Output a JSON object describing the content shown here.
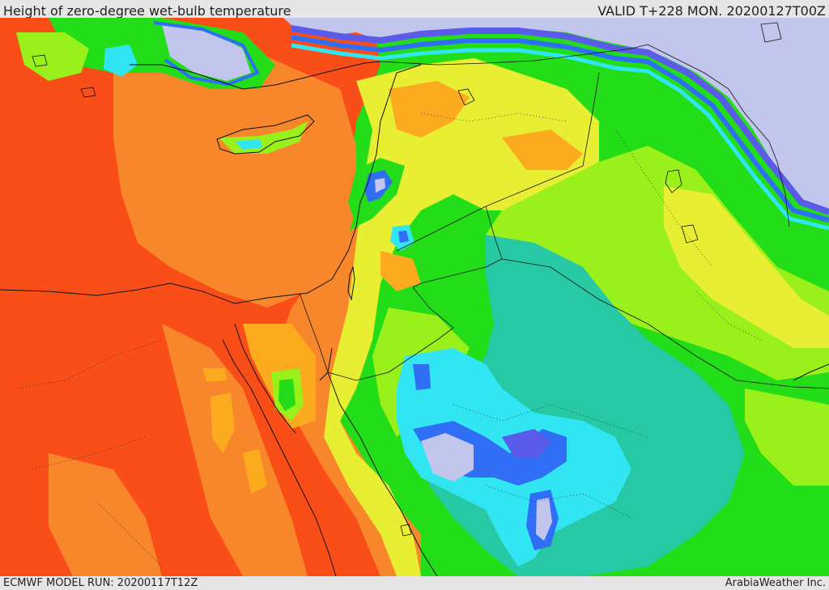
{
  "header": {
    "title": "Height of zero-degree wet-bulb temperature",
    "valid": "VALID T+228 MON. 20200127T00Z"
  },
  "footer": {
    "model_run": "ECMWF MODEL RUN: 20200117T12Z",
    "credit": "ArabiaWeather Inc."
  },
  "colors": {
    "deep_orange": "#f94e17",
    "orange": "#f8862a",
    "light_orange": "#fcab1e",
    "yellow": "#e8ef32",
    "lime": "#9af01a",
    "green": "#22dd17",
    "teal": "#26c9a4",
    "cyan": "#31e6f2",
    "blue": "#2f6ef5",
    "violet": "#5a5be8",
    "lavender": "#c3c6ec"
  }
}
